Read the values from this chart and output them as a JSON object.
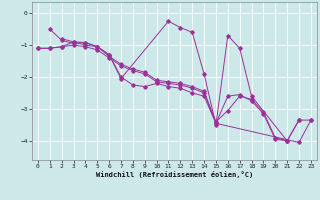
{
  "xlabel": "Windchill (Refroidissement éolien,°C)",
  "bg_color": "#cce8e8",
  "line_color": "#993399",
  "xlim": [
    -0.5,
    23.5
  ],
  "ylim": [
    -4.6,
    0.35
  ],
  "yticks": [
    0,
    -1,
    -2,
    -3,
    -4
  ],
  "xticks": [
    0,
    1,
    2,
    3,
    4,
    5,
    6,
    7,
    8,
    9,
    10,
    11,
    12,
    13,
    14,
    15,
    16,
    17,
    18,
    19,
    20,
    21,
    22,
    23
  ],
  "series": [
    [
      0,
      -1.1,
      1,
      -1.1,
      2,
      -1.05,
      3,
      -0.9,
      4,
      -1.0,
      5,
      -1.05,
      6,
      -1.35,
      7,
      -1.6,
      8,
      -1.75,
      9,
      -1.85,
      10,
      -2.1,
      11,
      -2.15,
      12,
      -2.2,
      13,
      -2.3,
      14,
      -2.45,
      15,
      -3.4,
      16,
      -3.05,
      17,
      -2.6,
      18,
      -2.7,
      19,
      -3.1,
      20,
      -3.9,
      21,
      -4.0,
      22,
      -3.35,
      23,
      -3.35
    ],
    [
      2,
      -0.8,
      3,
      -0.9,
      4,
      -0.92,
      5,
      -1.05,
      6,
      -1.3,
      7,
      -2.0,
      8,
      -2.25,
      9,
      -2.3,
      10,
      -2.2,
      11,
      -2.3,
      12,
      -2.35,
      13,
      -2.5,
      14,
      -2.6,
      15,
      -3.45,
      16,
      -2.6,
      17,
      -2.55,
      18,
      -2.75,
      19,
      -3.15,
      20,
      -3.95,
      21,
      -4.0,
      22,
      -3.35
    ],
    [
      1,
      -0.5,
      2,
      -0.85,
      3,
      -0.95,
      4,
      -0.92,
      5,
      -1.05,
      6,
      -1.3,
      7,
      -2.05,
      11,
      -0.25,
      12,
      -0.45,
      13,
      -0.6,
      14,
      -1.9,
      15,
      -3.5,
      16,
      -0.7,
      17,
      -1.1,
      18,
      -2.6,
      21,
      -4.0
    ],
    [
      0,
      -1.1,
      1,
      -1.1,
      2,
      -1.05,
      3,
      -1.0,
      4,
      -1.05,
      5,
      -1.15,
      6,
      -1.4,
      7,
      -1.65,
      8,
      -1.8,
      9,
      -1.9,
      10,
      -2.15,
      11,
      -2.2,
      12,
      -2.25,
      13,
      -2.35,
      14,
      -2.5,
      15,
      -3.45,
      22,
      -4.05,
      23,
      -3.35
    ]
  ]
}
